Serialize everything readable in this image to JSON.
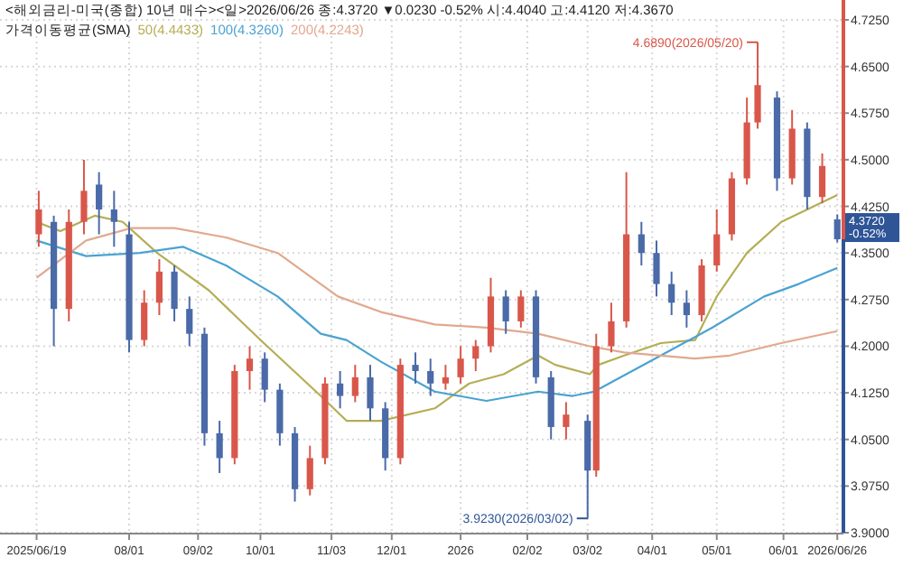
{
  "chart_data": {
    "type": "candlestick",
    "title": "<해외금리-미국(종합) 10년 매수><일>2026/06/26 종:4.3720 ▼0.0230 -0.52% 시:4.4040 고:4.4120 저:4.3670",
    "legend_title": "가격이동평균(SMA)",
    "x": [
      "2025-06-20",
      "2025-06-27",
      "2025-07-04",
      "2025-07-11",
      "2025-07-18",
      "2025-07-25",
      "2025-08-01",
      "2025-08-08",
      "2025-08-15",
      "2025-08-22",
      "2025-08-29",
      "2025-09-05",
      "2025-09-12",
      "2025-09-19",
      "2025-09-26",
      "2025-10-03",
      "2025-10-10",
      "2025-10-17",
      "2025-10-24",
      "2025-10-31",
      "2025-11-07",
      "2025-11-14",
      "2025-11-21",
      "2025-11-28",
      "2025-12-05",
      "2025-12-12",
      "2025-12-19",
      "2025-12-26",
      "2026-01-02",
      "2026-01-09",
      "2026-01-16",
      "2026-01-23",
      "2026-01-30",
      "2026-02-06",
      "2026-02-13",
      "2026-02-20",
      "2026-03-02",
      "2026-03-06",
      "2026-03-13",
      "2026-03-20",
      "2026-03-27",
      "2026-04-03",
      "2026-04-10",
      "2026-04-17",
      "2026-04-24",
      "2026-05-01",
      "2026-05-08",
      "2026-05-15",
      "2026-05-20",
      "2026-05-29",
      "2026-06-05",
      "2026-06-12",
      "2026-06-19",
      "2026-06-26"
    ],
    "ohlc": [
      [
        4.38,
        4.45,
        4.36,
        4.42
      ],
      [
        4.4,
        4.41,
        4.2,
        4.26
      ],
      [
        4.26,
        4.42,
        4.24,
        4.4
      ],
      [
        4.4,
        4.5,
        4.38,
        4.45
      ],
      [
        4.46,
        4.48,
        4.38,
        4.42
      ],
      [
        4.42,
        4.45,
        4.36,
        4.4
      ],
      [
        4.38,
        4.4,
        4.19,
        4.21
      ],
      [
        4.21,
        4.29,
        4.2,
        4.27
      ],
      [
        4.27,
        4.34,
        4.25,
        4.32
      ],
      [
        4.32,
        4.33,
        4.24,
        4.26
      ],
      [
        4.26,
        4.28,
        4.2,
        4.22
      ],
      [
        4.22,
        4.23,
        4.04,
        4.06
      ],
      [
        4.06,
        4.08,
        3.996,
        4.02
      ],
      [
        4.02,
        4.17,
        4.01,
        4.16
      ],
      [
        4.16,
        4.2,
        4.13,
        4.18
      ],
      [
        4.18,
        4.19,
        4.11,
        4.13
      ],
      [
        4.13,
        4.14,
        4.04,
        4.06
      ],
      [
        4.06,
        4.07,
        3.95,
        3.97
      ],
      [
        3.97,
        4.04,
        3.96,
        4.02
      ],
      [
        4.02,
        4.15,
        4.01,
        4.14
      ],
      [
        4.14,
        4.16,
        4.1,
        4.12
      ],
      [
        4.12,
        4.17,
        4.11,
        4.15
      ],
      [
        4.15,
        4.17,
        4.08,
        4.1
      ],
      [
        4.1,
        4.11,
        4.0,
        4.02
      ],
      [
        4.02,
        4.18,
        4.01,
        4.17
      ],
      [
        4.17,
        4.19,
        4.14,
        4.16
      ],
      [
        4.16,
        4.18,
        4.12,
        4.14
      ],
      [
        4.14,
        4.17,
        4.13,
        4.15
      ],
      [
        4.15,
        4.2,
        4.14,
        4.18
      ],
      [
        4.18,
        4.21,
        4.16,
        4.2
      ],
      [
        4.2,
        4.31,
        4.19,
        4.28
      ],
      [
        4.28,
        4.29,
        4.22,
        4.24
      ],
      [
        4.24,
        4.29,
        4.23,
        4.28
      ],
      [
        4.28,
        4.29,
        4.14,
        4.15
      ],
      [
        4.15,
        4.16,
        4.05,
        4.07
      ],
      [
        4.07,
        4.11,
        4.05,
        4.09
      ],
      [
        4.08,
        4.09,
        3.923,
        4.0
      ],
      [
        4.0,
        4.22,
        3.99,
        4.2
      ],
      [
        4.2,
        4.27,
        4.19,
        4.24
      ],
      [
        4.24,
        4.48,
        4.23,
        4.38
      ],
      [
        4.38,
        4.4,
        4.33,
        4.35
      ],
      [
        4.35,
        4.37,
        4.28,
        4.3
      ],
      [
        4.3,
        4.32,
        4.25,
        4.27
      ],
      [
        4.27,
        4.29,
        4.23,
        4.25
      ],
      [
        4.25,
        4.34,
        4.24,
        4.33
      ],
      [
        4.33,
        4.42,
        4.32,
        4.38
      ],
      [
        4.38,
        4.48,
        4.37,
        4.47
      ],
      [
        4.47,
        4.6,
        4.46,
        4.56
      ],
      [
        4.56,
        4.689,
        4.55,
        4.62
      ],
      [
        4.6,
        4.61,
        4.45,
        4.47
      ],
      [
        4.47,
        4.58,
        4.46,
        4.55
      ],
      [
        4.55,
        4.56,
        4.42,
        4.44
      ],
      [
        4.44,
        4.51,
        4.43,
        4.49
      ],
      [
        4.404,
        4.412,
        4.367,
        4.372
      ]
    ],
    "colors": [
      "#d9574a",
      "#4a6aa8",
      "#d9574a",
      "#d9574a",
      "#4a6aa8",
      "#4a6aa8",
      "#4a6aa8",
      "#d9574a",
      "#d9574a",
      "#4a6aa8",
      "#4a6aa8",
      "#4a6aa8",
      "#4a6aa8",
      "#d9574a",
      "#d9574a",
      "#4a6aa8",
      "#4a6aa8",
      "#4a6aa8",
      "#d9574a",
      "#d9574a",
      "#4a6aa8",
      "#d9574a",
      "#4a6aa8",
      "#4a6aa8",
      "#d9574a",
      "#4a6aa8",
      "#4a6aa8",
      "#d9574a",
      "#d9574a",
      "#d9574a",
      "#d9574a",
      "#4a6aa8",
      "#d9574a",
      "#4a6aa8",
      "#4a6aa8",
      "#d9574a",
      "#4a6aa8",
      "#d9574a",
      "#d9574a",
      "#d9574a",
      "#4a6aa8",
      "#4a6aa8",
      "#4a6aa8",
      "#4a6aa8",
      "#d9574a",
      "#d9574a",
      "#d9574a",
      "#d9574a",
      "#d9574a",
      "#4a6aa8",
      "#d9574a",
      "#4a6aa8",
      "#d9574a",
      "#4a6aa8"
    ],
    "series": [
      {
        "name": "50(4.4433)",
        "type": "line",
        "color": "#b5ae55",
        "x": [
          "2025-06-19",
          "2025-06-30",
          "2025-07-16",
          "2025-07-29",
          "2025-08-14",
          "2025-09-07",
          "2025-10-01",
          "2025-10-29",
          "2025-11-10",
          "2025-11-26",
          "2025-12-21",
          "2026-01-06",
          "2026-01-22",
          "2026-02-07",
          "2026-02-15",
          "2026-03-03",
          "2026-03-07",
          "2026-03-19",
          "2026-04-05",
          "2026-04-21",
          "2026-05-01",
          "2026-05-15",
          "2026-05-31",
          "2026-06-26"
        ],
        "values": [
          4.4,
          4.385,
          4.41,
          4.4,
          4.35,
          4.29,
          4.21,
          4.12,
          4.08,
          4.08,
          4.1,
          4.14,
          4.155,
          4.185,
          4.17,
          4.155,
          4.17,
          4.185,
          4.205,
          4.21,
          4.28,
          4.35,
          4.4,
          4.4433
        ]
      },
      {
        "name": "100(4.3260)",
        "type": "line",
        "color": "#4aa3d2",
        "x": [
          "2025-06-19",
          "2025-07-12",
          "2025-08-06",
          "2025-08-26",
          "2025-09-15",
          "2025-10-09",
          "2025-10-29",
          "2025-11-10",
          "2025-11-26",
          "2025-12-21",
          "2026-01-14",
          "2026-02-07",
          "2026-02-23",
          "2026-03-05",
          "2026-04-05",
          "2026-04-29",
          "2026-05-23",
          "2026-06-08",
          "2026-06-26"
        ],
        "values": [
          4.37,
          4.345,
          4.35,
          4.36,
          4.33,
          4.28,
          4.22,
          4.21,
          4.175,
          4.127,
          4.112,
          4.127,
          4.12,
          4.127,
          4.185,
          4.23,
          4.28,
          4.3,
          4.326
        ]
      },
      {
        "name": "200(4.2243)",
        "type": "line",
        "color": "#e2a88e",
        "x": [
          "2025-06-19",
          "2025-07-12",
          "2025-08-02",
          "2025-08-22",
          "2025-09-15",
          "2025-10-09",
          "2025-10-29",
          "2025-11-06",
          "2025-11-26",
          "2025-12-21",
          "2026-01-14",
          "2026-02-07",
          "2026-03-03",
          "2026-03-19",
          "2026-04-21",
          "2026-05-07",
          "2026-05-31",
          "2026-06-26"
        ],
        "values": [
          4.31,
          4.37,
          4.39,
          4.39,
          4.375,
          4.35,
          4.3,
          4.28,
          4.255,
          4.235,
          4.23,
          4.22,
          4.2,
          4.19,
          4.18,
          4.185,
          4.205,
          4.2243
        ]
      }
    ],
    "xlim": [
      "2025-06-02",
      "2026-06-28"
    ],
    "xticks": [
      {
        "value": "2025-06-19",
        "label": "2025/06/19"
      },
      {
        "value": "2025-08-01",
        "label": "08/01"
      },
      {
        "value": "2025-09-02",
        "label": "09/02"
      },
      {
        "value": "2025-10-01",
        "label": "10/01"
      },
      {
        "value": "2025-11-03",
        "label": "11/03"
      },
      {
        "value": "2025-12-01",
        "label": "12/01"
      },
      {
        "value": "2026-01-02",
        "label": "2026"
      },
      {
        "value": "2026-02-02",
        "label": "02/02"
      },
      {
        "value": "2026-03-02",
        "label": "03/02"
      },
      {
        "value": "2026-04-01",
        "label": "04/01"
      },
      {
        "value": "2026-05-01",
        "label": "05/01"
      },
      {
        "value": "2026-06-01",
        "label": "06/01"
      },
      {
        "value": "2026-06-26",
        "label": "2026/06/26"
      }
    ],
    "ylim": [
      3.9,
      4.725
    ],
    "yticks": [
      {
        "value": 3.9,
        "label": "3.9000"
      },
      {
        "value": 3.975,
        "label": "3.9750"
      },
      {
        "value": 4.05,
        "label": "4.0500"
      },
      {
        "value": 4.125,
        "label": "4.1250"
      },
      {
        "value": 4.2,
        "label": "4.2000"
      },
      {
        "value": 4.275,
        "label": "4.2750"
      },
      {
        "value": 4.35,
        "label": "4.3500"
      },
      {
        "value": 4.425,
        "label": "4.4250"
      },
      {
        "value": 4.5,
        "label": "4.5000"
      },
      {
        "value": 4.575,
        "label": "4.5750"
      },
      {
        "value": 4.65,
        "label": "4.6500"
      },
      {
        "value": 4.725,
        "label": "4.7250"
      }
    ],
    "grid": true,
    "legend": "top left",
    "annotations": [
      {
        "text": "4.6890(2026/05/20)",
        "x": "2026-05-20",
        "y": 4.689
      },
      {
        "text": "3.9230(2026/03/02)",
        "x": "2026-03-02",
        "y": 3.923
      },
      {
        "text": "4.3720",
        "x": "2026-06-26",
        "y": 4.372
      },
      "-0.52%"
    ]
  }
}
